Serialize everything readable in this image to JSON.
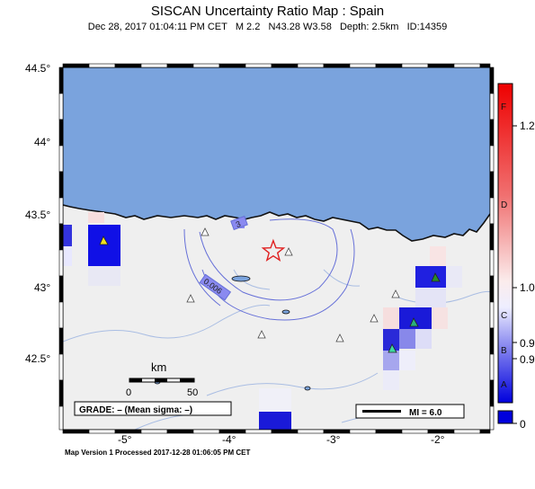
{
  "title": "SISCAN Uncertainty Ratio Map : Spain",
  "subtitle": "Dec 28, 2017 01:04:11 PM CET   M 2.2   N43.28 W3.58   Depth: 2.5km   ID:14359",
  "footer": "Map Version 1 Processed 2017-12-28 01:06:05 PM CET",
  "map": {
    "lat_ticks": [
      "44.5°",
      "44°",
      "43.5°",
      "43°",
      "42.5°"
    ],
    "lon_ticks": [
      "-5°",
      "-4°",
      "-3°",
      "-2°"
    ],
    "contour_labels": [
      "3",
      "0.006"
    ],
    "epicenter": {
      "lat": 43.28,
      "lon": -3.58
    },
    "scale_bar": {
      "label": "km",
      "min": "0",
      "max": "50"
    },
    "grade_box": "GRADE: – (Mean sigma: –)",
    "mi_legend": "MI = 6.0",
    "colors": {
      "sea": "#7aa3dd",
      "land": "#efefef",
      "epicenter": "#e02020"
    }
  },
  "colorbar": {
    "letters": [
      "F",
      "D",
      "C",
      "B",
      "A"
    ],
    "values": [
      "1.2",
      "1.0",
      "0.9",
      "0.9",
      "0"
    ]
  }
}
